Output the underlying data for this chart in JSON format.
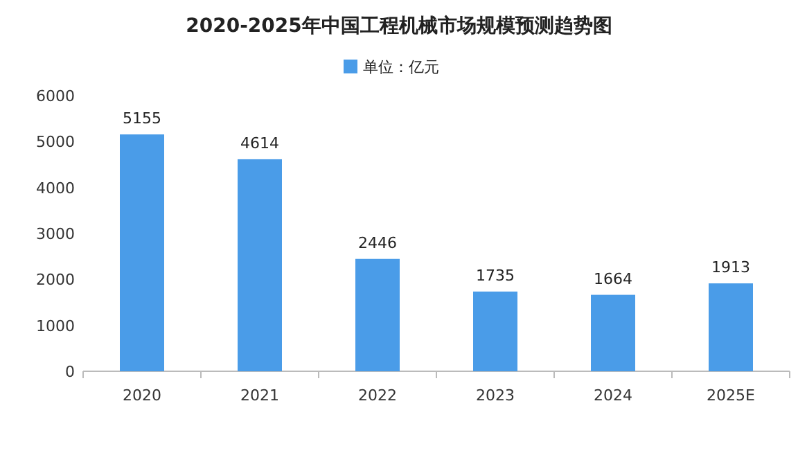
{
  "chart_data": {
    "type": "bar",
    "title": "2020-2025年中国工程机械市场规模预测趋势图",
    "categories": [
      "2020",
      "2021",
      "2022",
      "2023",
      "2024",
      "2025E"
    ],
    "series": [
      {
        "name": "单位：亿元",
        "color": "#4a9ce8",
        "values": [
          5155,
          4614,
          2446,
          1735,
          1664,
          1913
        ]
      }
    ],
    "ylim": [
      0,
      6000
    ],
    "yticks": [
      0,
      1000,
      2000,
      3000,
      4000,
      5000,
      6000
    ],
    "data_labels": true,
    "legend": "top",
    "grid": false
  }
}
